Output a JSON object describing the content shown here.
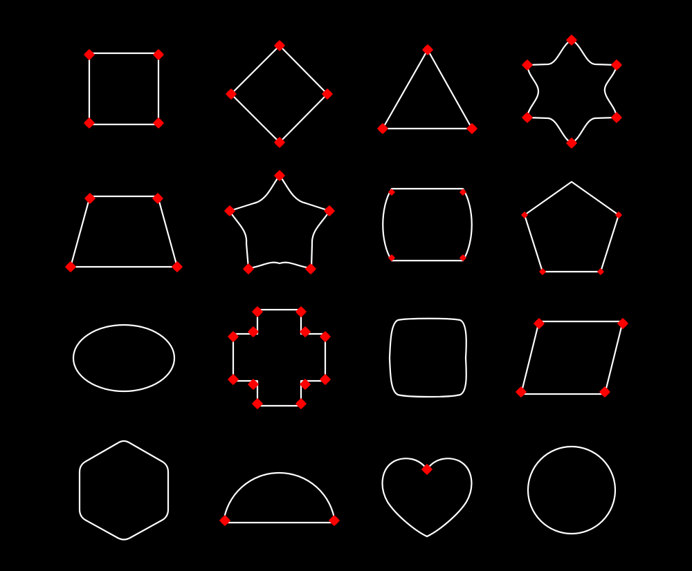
{
  "colors": {
    "background": "#000000",
    "outline": "#ffffff",
    "vertex_marker": "#ff0000"
  },
  "shapes": [
    {
      "name": "square",
      "vertex_markers": 4
    },
    {
      "name": "diamond",
      "vertex_markers": 4
    },
    {
      "name": "triangle",
      "vertex_markers": 3
    },
    {
      "name": "six-point-star",
      "vertex_markers": 6
    },
    {
      "name": "trapezoid",
      "vertex_markers": 4
    },
    {
      "name": "five-point-star",
      "vertex_markers": 5
    },
    {
      "name": "barrel-rectangle",
      "vertex_markers": 4
    },
    {
      "name": "pentagon",
      "vertex_markers": 5
    },
    {
      "name": "ellipse",
      "vertex_markers": 0
    },
    {
      "name": "cross",
      "vertex_markers": 12
    },
    {
      "name": "squircle",
      "vertex_markers": 0
    },
    {
      "name": "parallelogram",
      "vertex_markers": 4
    },
    {
      "name": "rounded-hexagon",
      "vertex_markers": 0
    },
    {
      "name": "semicircle",
      "vertex_markers": 2
    },
    {
      "name": "heart",
      "vertex_markers": 1
    },
    {
      "name": "circle",
      "vertex_markers": 0
    }
  ]
}
